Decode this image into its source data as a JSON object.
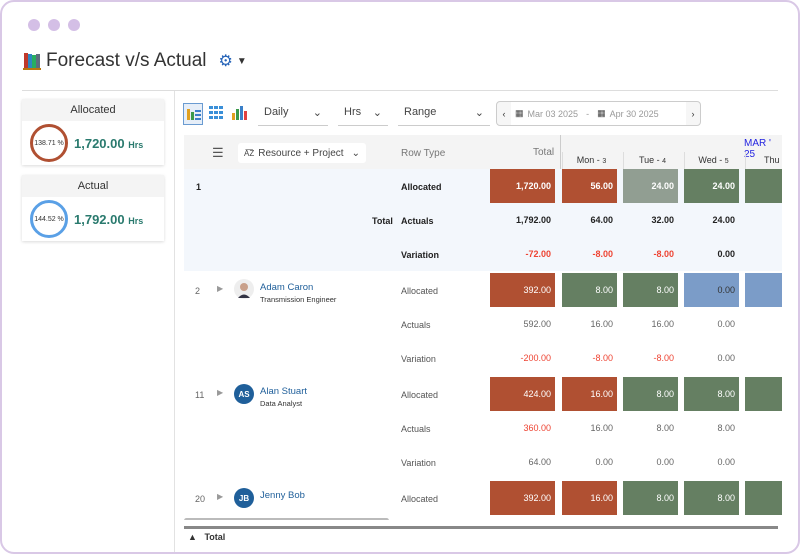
{
  "title": "Forecast v/s Actual",
  "colors": {
    "over": "#b05032",
    "ok": "#657f62",
    "light": "#919e92",
    "under": "#7b9cc8",
    "accent": "#2a7a6e",
    "link": "#1f5f9a"
  },
  "cards": [
    {
      "label": "Allocated",
      "percent": "138.71 %",
      "value": "1,720.00",
      "unit": "Hrs",
      "ring_color": "#b05032"
    },
    {
      "label": "Actual",
      "percent": "144.52 %",
      "value": "1,792.00",
      "unit": "Hrs",
      "ring_color": "#5aa0e6"
    }
  ],
  "toolbar": {
    "period": "Daily",
    "unit": "Hrs",
    "range": "Range",
    "start_date": "Mar 03 2025",
    "end_date": "Apr 30 2025",
    "separator": "-"
  },
  "grid": {
    "group_by": "Resource + Project",
    "row_type_header": "Row Type",
    "total_header": "Total",
    "month": "MAR ' 25",
    "days": [
      {
        "label": "Mon -",
        "num": "3"
      },
      {
        "label": "Tue -",
        "num": "4"
      },
      {
        "label": "Wed -",
        "num": "5"
      },
      {
        "label": "Thu -",
        "num": ""
      }
    ],
    "total_block": {
      "index": "1",
      "label": "Total",
      "rows": [
        {
          "type": "Allocated",
          "total": "1,720.00",
          "days": [
            "56.00",
            "24.00",
            "24.00",
            ""
          ],
          "colors": [
            "over",
            "over",
            "light",
            "ok",
            "ok"
          ]
        },
        {
          "type": "Actuals",
          "total": "1,792.00",
          "days": [
            "64.00",
            "32.00",
            "24.00",
            ""
          ]
        },
        {
          "type": "Variation",
          "total": "-72.00",
          "days": [
            "-8.00",
            "-8.00",
            "0.00",
            ""
          ],
          "red": [
            true,
            true,
            true,
            false,
            false
          ]
        }
      ]
    },
    "people": [
      {
        "index": "2",
        "name": "Adam Caron",
        "role": "Transmission Engineer",
        "initials": "",
        "rows": [
          {
            "type": "Allocated",
            "total": "392.00",
            "days": [
              "8.00",
              "8.00",
              "0.00",
              ""
            ],
            "colors": [
              "over",
              "ok",
              "ok",
              "under",
              "under"
            ]
          },
          {
            "type": "Actuals",
            "total": "592.00",
            "days": [
              "16.00",
              "16.00",
              "0.00",
              ""
            ]
          },
          {
            "type": "Variation",
            "total": "-200.00",
            "days": [
              "-8.00",
              "-8.00",
              "0.00",
              ""
            ],
            "red": [
              true,
              true,
              true,
              false,
              false
            ]
          }
        ]
      },
      {
        "index": "11",
        "name": "Alan Stuart",
        "role": "Data Analyst",
        "initials": "AS",
        "rows": [
          {
            "type": "Allocated",
            "total": "424.00",
            "days": [
              "16.00",
              "8.00",
              "8.00",
              ""
            ],
            "colors": [
              "over",
              "over",
              "ok",
              "ok",
              "ok"
            ]
          },
          {
            "type": "Actuals",
            "total": "360.00",
            "days": [
              "16.00",
              "8.00",
              "8.00",
              ""
            ],
            "red": [
              true,
              false,
              false,
              false,
              false
            ]
          },
          {
            "type": "Variation",
            "total": "64.00",
            "days": [
              "0.00",
              "0.00",
              "0.00",
              ""
            ]
          }
        ]
      },
      {
        "index": "20",
        "name": "Jenny Bob",
        "role": "",
        "initials": "JB",
        "rows": [
          {
            "type": "Allocated",
            "total": "392.00",
            "days": [
              "16.00",
              "8.00",
              "8.00",
              ""
            ],
            "colors": [
              "over",
              "over",
              "ok",
              "ok",
              "ok"
            ]
          }
        ]
      }
    ]
  },
  "footer": {
    "label": "Total"
  }
}
